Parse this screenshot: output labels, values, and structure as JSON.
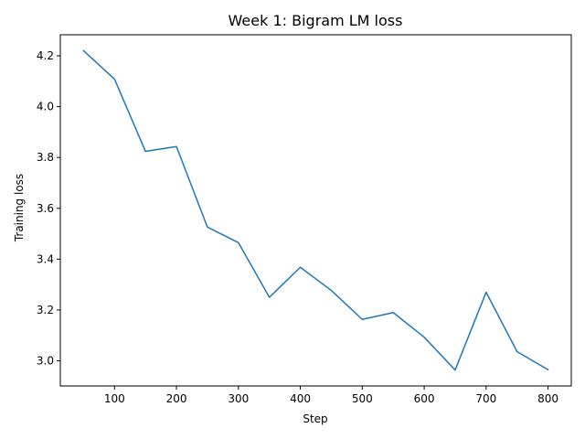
{
  "chart_data": {
    "type": "line",
    "title": "Week 1: Bigram LM loss",
    "xlabel": "Step",
    "ylabel": "Training loss",
    "x": [
      50,
      100,
      150,
      200,
      250,
      300,
      350,
      400,
      450,
      500,
      550,
      600,
      650,
      700,
      750,
      800
    ],
    "series": [
      {
        "values": [
          4.22,
          4.108,
          3.824,
          3.843,
          3.526,
          3.465,
          3.25,
          3.368,
          3.277,
          3.163,
          3.19,
          3.093,
          2.964,
          3.27,
          3.036,
          2.965
        ],
        "color": "#1f77b4"
      }
    ],
    "xlim": [
      12.5,
      837.5
    ],
    "ylim": [
      2.9012,
      4.2828
    ],
    "xticks": [
      100,
      200,
      300,
      400,
      500,
      600,
      700,
      800
    ],
    "xtick_labels": [
      "100",
      "200",
      "300",
      "400",
      "500",
      "600",
      "700",
      "800"
    ],
    "yticks": [
      3.0,
      3.2,
      3.4,
      3.6,
      3.8,
      4.0,
      4.2
    ],
    "ytick_labels": [
      "3.0",
      "3.2",
      "3.4",
      "3.6",
      "3.8",
      "4.0",
      "4.2"
    ],
    "grid": false,
    "legend": "none"
  }
}
